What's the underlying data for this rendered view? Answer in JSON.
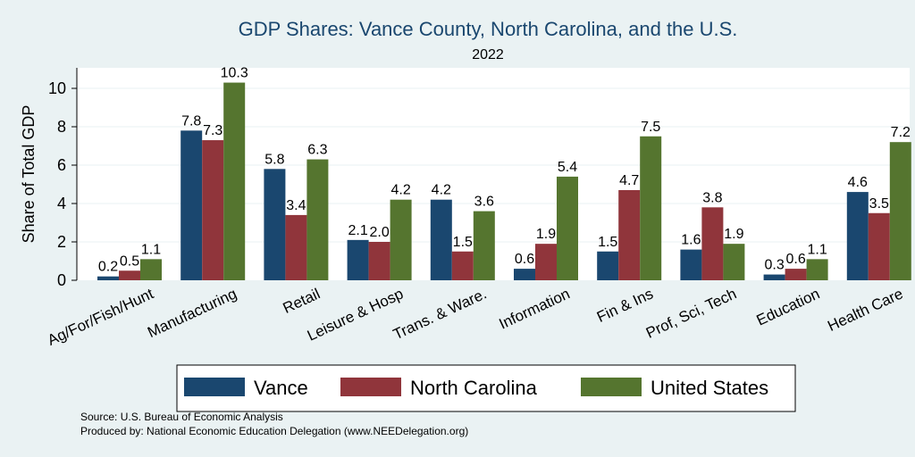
{
  "chart_data": {
    "type": "bar",
    "title": "GDP Shares: Vance County, North Carolina, and the U.S.",
    "subtitle": "2022",
    "ylabel": "Share of Total GDP",
    "xlabel": "",
    "ylim": [
      0,
      11
    ],
    "yticks": [
      0,
      2,
      4,
      6,
      8,
      10
    ],
    "grid": true,
    "legend_position": "bottom",
    "categories": [
      "Ag/For/Fish/Hunt",
      "Manufacturing",
      "Retail",
      "Leisure & Hosp",
      "Trans. & Ware.",
      "Information",
      "Fin & Ins",
      "Prof, Sci, Tech",
      "Education",
      "Health Care"
    ],
    "series": [
      {
        "name": "Vance",
        "color": "#1a476f",
        "values": [
          0.2,
          7.8,
          5.8,
          2.1,
          4.2,
          0.6,
          1.5,
          1.6,
          0.3,
          4.6
        ],
        "labels": [
          "0.2",
          "7.8",
          "5.8",
          "2.1",
          "4.2",
          "0.6",
          "1.5",
          "1.6",
          "0.3",
          "4.6"
        ]
      },
      {
        "name": "North Carolina",
        "color": "#90353b",
        "values": [
          0.5,
          7.3,
          3.4,
          2.0,
          1.5,
          1.9,
          4.7,
          3.8,
          0.6,
          3.5
        ],
        "labels": [
          "0.5",
          "7.3",
          "3.4",
          "2.0",
          "1.5",
          "1.9",
          "4.7",
          "3.8",
          "0.6",
          "3.5"
        ]
      },
      {
        "name": "United States",
        "color": "#55752f",
        "values": [
          1.1,
          10.3,
          6.3,
          4.2,
          3.6,
          5.4,
          7.5,
          1.9,
          1.1,
          7.2
        ],
        "labels": [
          "1.1",
          "10.3",
          "6.3",
          "4.2",
          "3.6",
          "5.4",
          "7.5",
          "1.9",
          "1.1",
          "7.2"
        ]
      }
    ]
  },
  "footer": {
    "source": "Source: U.S. Bureau of Economic Analysis",
    "produced_by": "Produced by: National Economic Education Delegation (www.NEEDelegation.org)"
  }
}
